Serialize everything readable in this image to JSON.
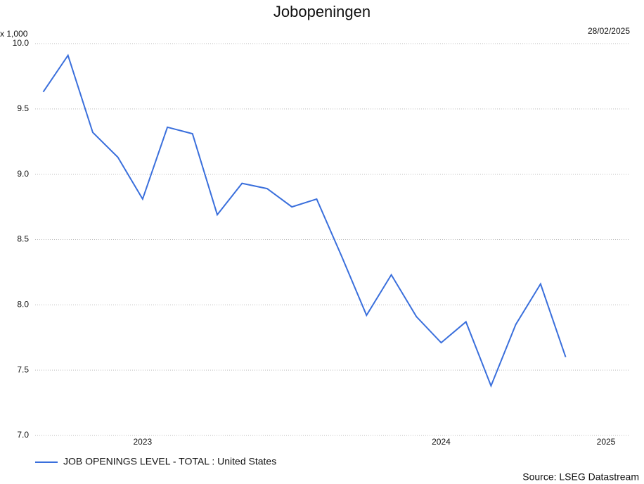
{
  "chart_data": {
    "type": "line",
    "title": "Jobopeningen",
    "unit_label": "x 1,000",
    "date_label": "28/02/2025",
    "source": "Source: LSEG Datastream",
    "x": [
      2023.167,
      2023.25,
      2023.333,
      2023.417,
      2023.5,
      2023.583,
      2023.667,
      2023.75,
      2023.833,
      2023.917,
      2024.0,
      2024.083,
      2024.167,
      2024.25,
      2024.333,
      2024.417,
      2024.5,
      2024.583,
      2024.667,
      2024.75,
      2024.833,
      2024.917
    ],
    "series": [
      {
        "name": "JOB OPENINGS LEVEL - TOTAL : United States",
        "color": "#3a6fdc",
        "values": [
          9.63,
          9.91,
          9.32,
          9.13,
          8.81,
          9.36,
          9.31,
          8.69,
          8.93,
          8.89,
          8.75,
          8.81,
          8.37,
          7.92,
          8.23,
          7.91,
          7.71,
          7.87,
          7.38,
          7.85,
          8.16,
          7.6
        ]
      }
    ],
    "xlim": [
      2023.14,
      2025.13
    ],
    "xticks": [
      2023,
      2024,
      2025
    ],
    "ylim": [
      7.0,
      10.0
    ],
    "yticks": [
      {
        "value": 7.0,
        "label": "7.0"
      },
      {
        "value": 7.5,
        "label": "7.5"
      },
      {
        "value": 8.0,
        "label": "8.0"
      },
      {
        "value": 8.5,
        "label": "8.5"
      },
      {
        "value": 9.0,
        "label": "9.0"
      },
      {
        "value": 9.5,
        "label": "9.5"
      },
      {
        "value": 10.0,
        "label": "10.0"
      }
    ],
    "grid": true
  }
}
